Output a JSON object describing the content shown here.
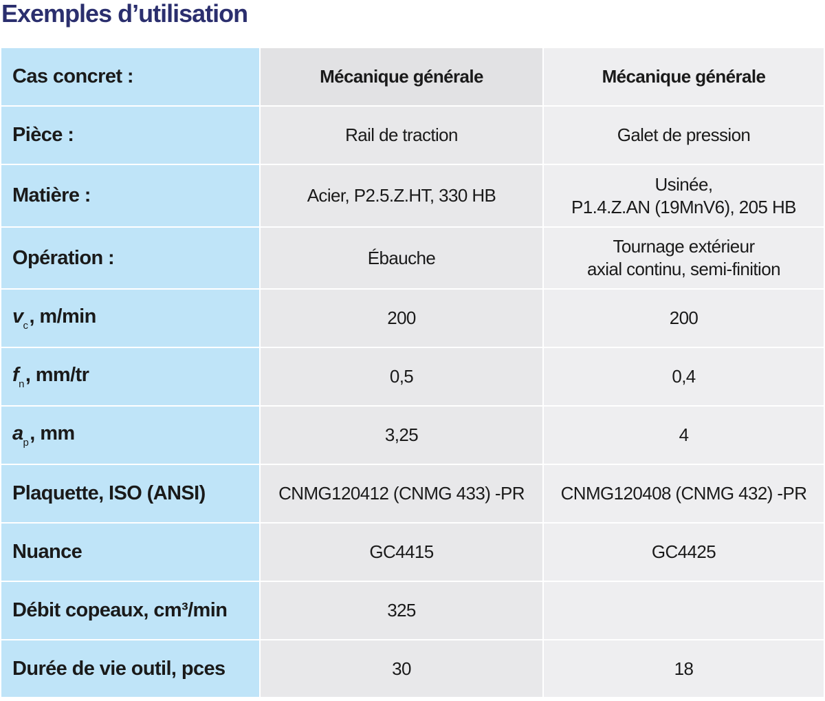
{
  "header": {
    "title": "Exemples d’utilisation"
  },
  "table": {
    "header": {
      "label": "Cas concret :",
      "columns": [
        "Mécanique générale",
        "Mécanique générale"
      ]
    },
    "rows": [
      {
        "label": "Pièce :",
        "cells": [
          "Rail de traction",
          "Galet de pression"
        ]
      },
      {
        "label": "Matière :",
        "cells": [
          "Acier, P2.5.Z.HT, 330 HB",
          "Usinée,\nP1.4.Z.AN (19MnV6), 205 HB"
        ]
      },
      {
        "label": "Opération :",
        "cells": [
          "Ébauche",
          "Tournage extérieur\naxial continu, semi-finition"
        ]
      },
      {
        "label": {
          "symbol": "v",
          "subscript": "c",
          "text": ", m/min"
        },
        "cells": [
          "200",
          "200"
        ]
      },
      {
        "label": {
          "symbol": "f",
          "subscript": "n",
          "text": ", mm/tr"
        },
        "cells": [
          "0,5",
          "0,4"
        ]
      },
      {
        "label": {
          "symbol": "a",
          "subscript": "p",
          "text": ", mm"
        },
        "cells": [
          "3,25",
          "4"
        ]
      },
      {
        "label": "Plaquette, ISO (ANSI)",
        "cells": [
          "CNMG120412 (CNMG 433) -PR",
          "CNMG120408 (CNMG 432) -PR"
        ]
      },
      {
        "label": "Nuance",
        "cells": [
          "GC4415",
          "GC4425"
        ]
      },
      {
        "label": "Débit copeaux, cm³/min",
        "cells": [
          "325",
          null
        ]
      },
      {
        "label": "Durée de vie outil, pces",
        "cells": [
          "30",
          "18"
        ]
      }
    ]
  }
}
